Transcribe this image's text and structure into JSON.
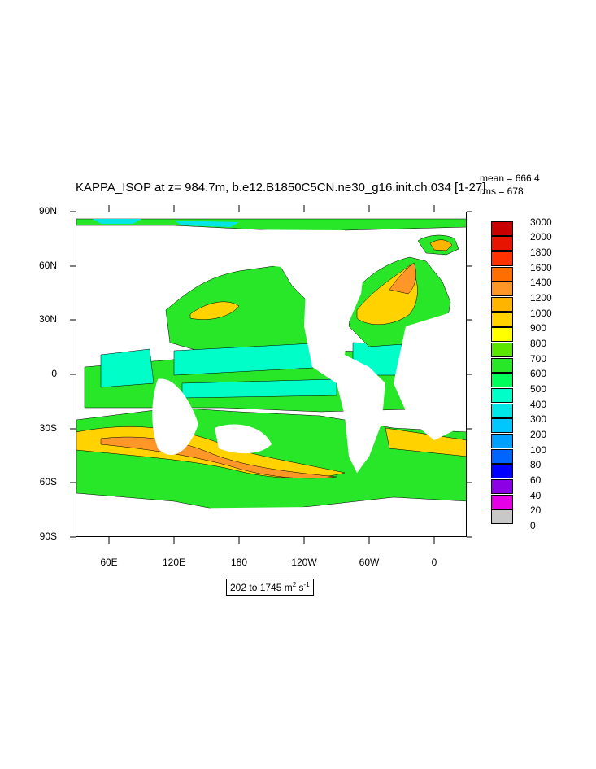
{
  "title": "KAPPA_ISOP at z= 984.7m, b.e12.B1850C5CN.ne30_g16.init.ch.034 [1-27]",
  "stats": {
    "mean": "mean = 666.4",
    "rms": "rms = 678"
  },
  "lat_labels": [
    "90N",
    "60N",
    "30N",
    "0",
    "30S",
    "60S",
    "90S"
  ],
  "lon_labels": [
    "60E",
    "120E",
    "180",
    "120W",
    "60W",
    "0"
  ],
  "legend": {
    "labels": [
      "3000",
      "2000",
      "1800",
      "1600",
      "1400",
      "1200",
      "1000",
      "900",
      "800",
      "700",
      "600",
      "500",
      "400",
      "300",
      "200",
      "100",
      "80",
      "60",
      "40",
      "20",
      "0"
    ],
    "colors": [
      "#c80000",
      "#e61400",
      "#ff3200",
      "#ff6e00",
      "#ff9628",
      "#ffb400",
      "#ffd200",
      "#ffff00",
      "#5ae600",
      "#28e628",
      "#00ff5a",
      "#00ffc8",
      "#00e6e6",
      "#00c8ff",
      "#00a0ff",
      "#0064ff",
      "#0000ff",
      "#8c00e6",
      "#e600e6",
      "#c8c8c8",
      "#787878"
    ]
  },
  "range": {
    "prefix": "202 to 1745 m",
    "sup1": "2",
    "mid": " s",
    "sup2": "-1"
  }
}
